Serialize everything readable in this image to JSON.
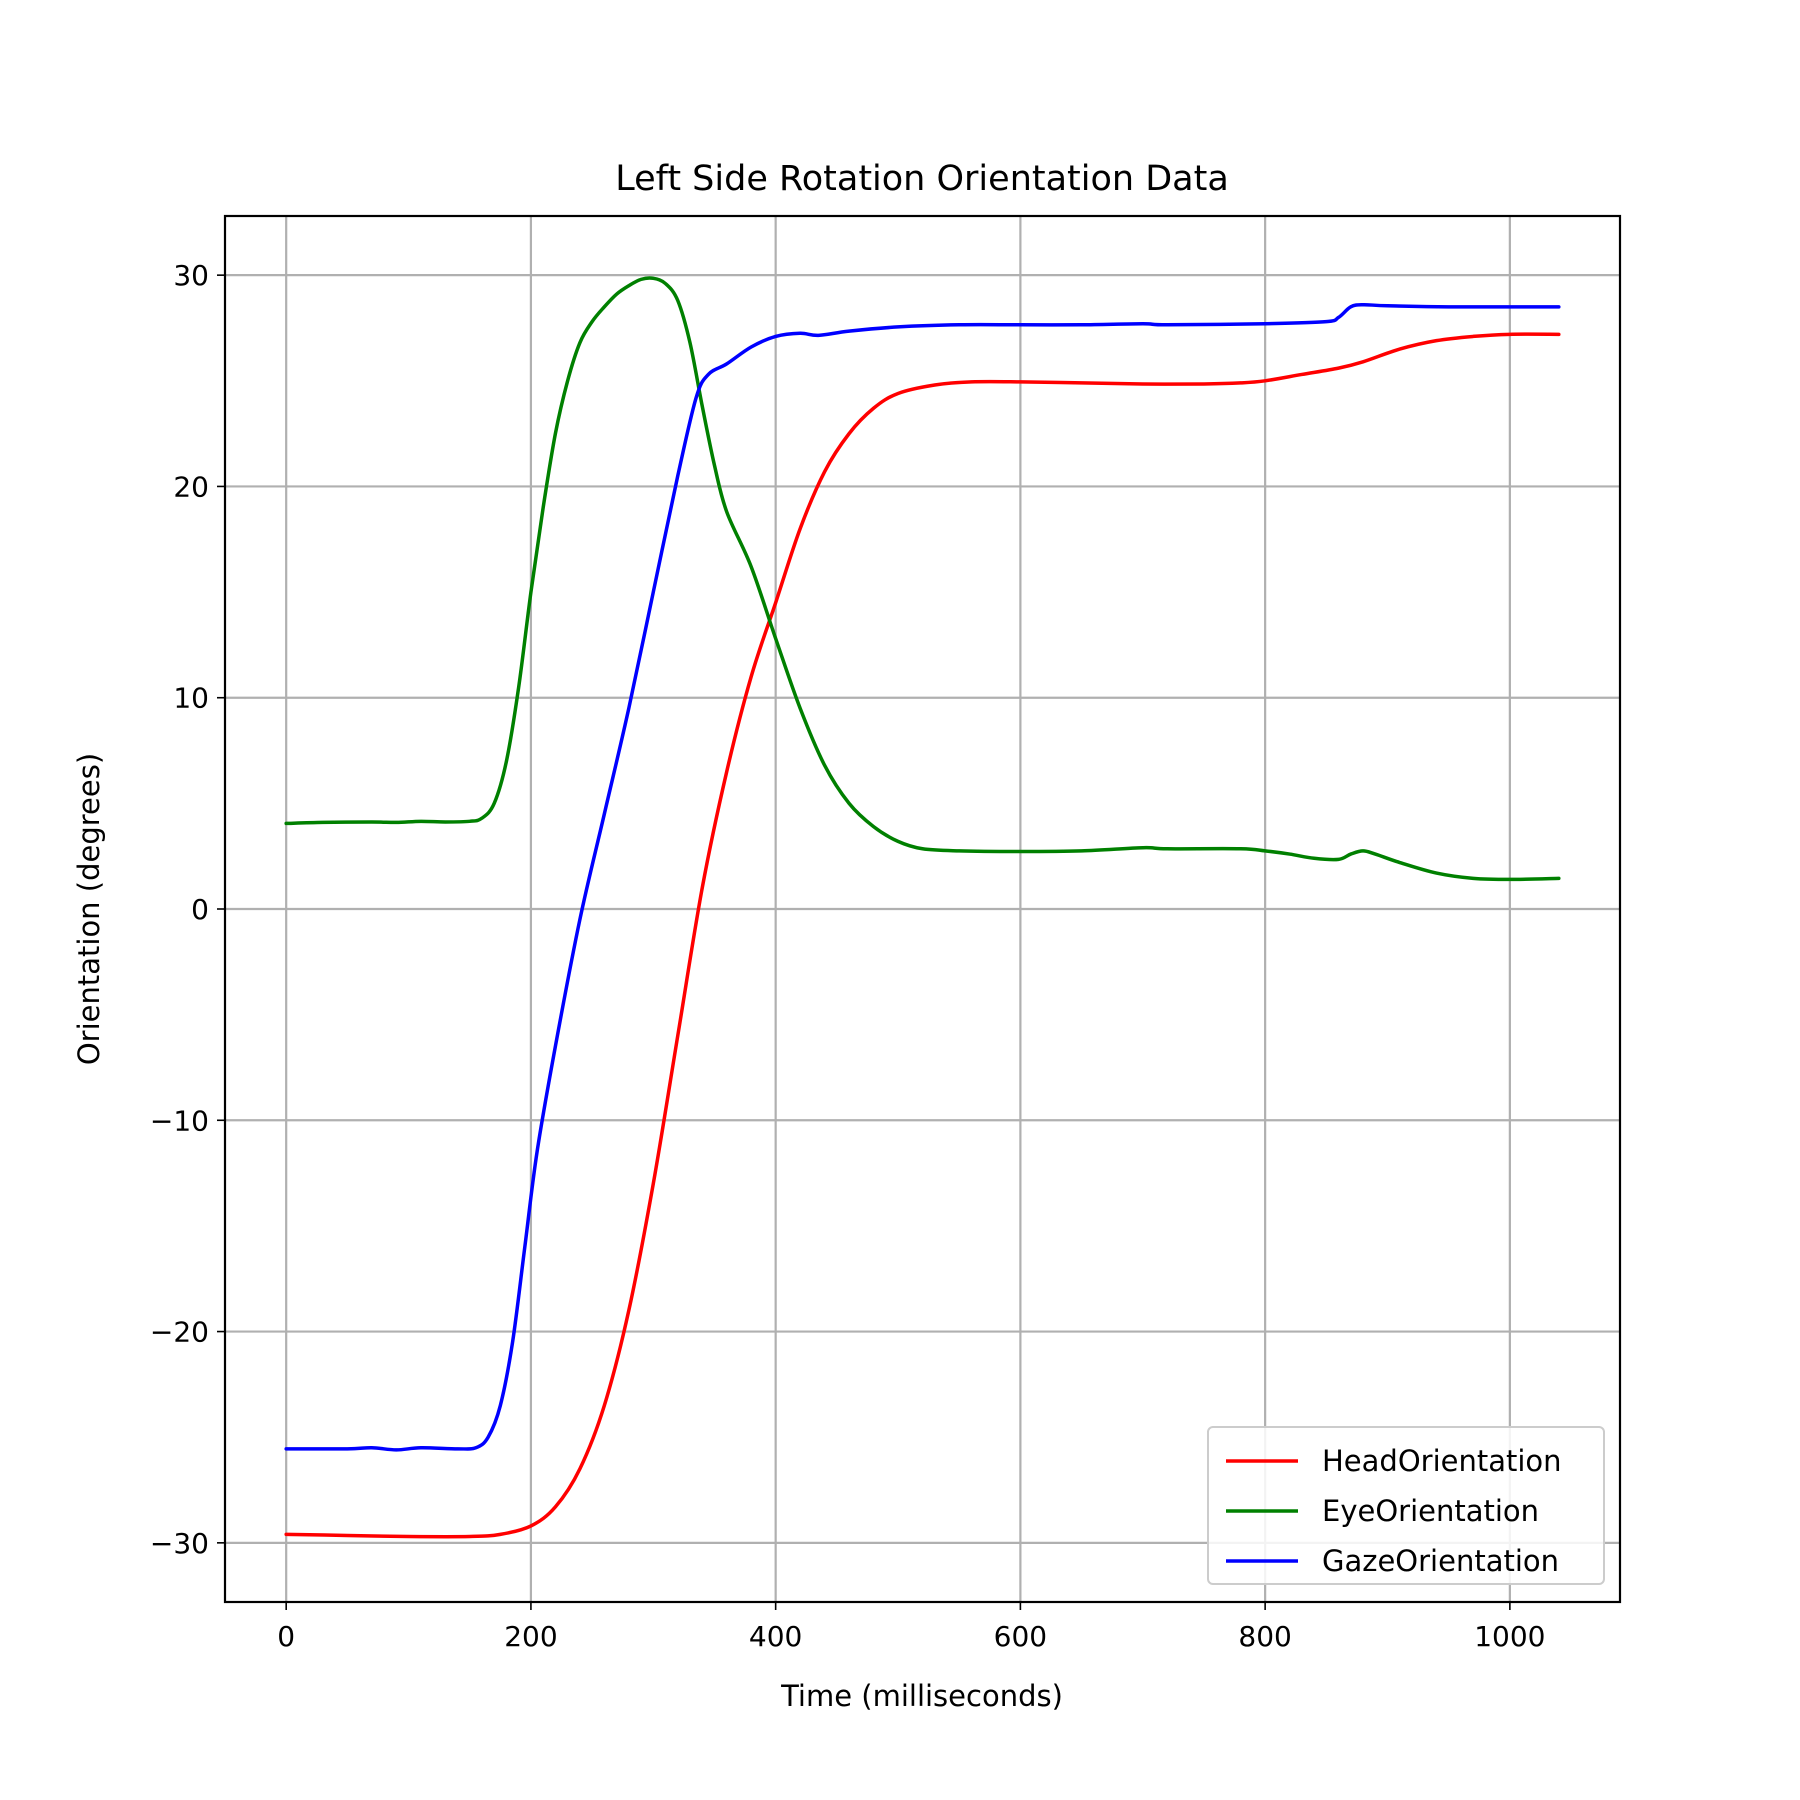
{
  "chart_data": {
    "type": "line",
    "title": "Left Side Rotation Orientation Data",
    "xlabel": "Time (milliseconds)",
    "ylabel": "Orientation (degrees)",
    "xlim": [
      -50,
      1090
    ],
    "ylim": [
      -32.8,
      32.8
    ],
    "xticks": [
      0,
      200,
      400,
      600,
      800,
      1000
    ],
    "yticks": [
      -30,
      -20,
      -10,
      0,
      10,
      20,
      30
    ],
    "xtick_labels": [
      "0",
      "200",
      "400",
      "600",
      "800",
      "1000"
    ],
    "ytick_labels": [
      "−30",
      "−20",
      "−10",
      "0",
      "10",
      "20",
      "30"
    ],
    "grid": true,
    "legend_position": "lower-right",
    "series": [
      {
        "name": "HeadOrientation",
        "color": "#ff0000",
        "points": [
          [
            0,
            -29.6
          ],
          [
            50,
            -29.65
          ],
          [
            100,
            -29.7
          ],
          [
            150,
            -29.7
          ],
          [
            175,
            -29.6
          ],
          [
            200,
            -29.2
          ],
          [
            220,
            -28.3
          ],
          [
            240,
            -26.5
          ],
          [
            260,
            -23.5
          ],
          [
            280,
            -19.0
          ],
          [
            300,
            -13.0
          ],
          [
            320,
            -6.0
          ],
          [
            340,
            1.0
          ],
          [
            360,
            6.5
          ],
          [
            380,
            11.0
          ],
          [
            400,
            14.5
          ],
          [
            420,
            18.0
          ],
          [
            440,
            20.7
          ],
          [
            460,
            22.5
          ],
          [
            480,
            23.7
          ],
          [
            500,
            24.4
          ],
          [
            530,
            24.8
          ],
          [
            560,
            24.95
          ],
          [
            600,
            24.95
          ],
          [
            650,
            24.9
          ],
          [
            700,
            24.85
          ],
          [
            750,
            24.85
          ],
          [
            780,
            24.9
          ],
          [
            800,
            25.0
          ],
          [
            830,
            25.3
          ],
          [
            860,
            25.6
          ],
          [
            880,
            25.9
          ],
          [
            910,
            26.5
          ],
          [
            940,
            26.9
          ],
          [
            970,
            27.1
          ],
          [
            1000,
            27.2
          ],
          [
            1040,
            27.2
          ]
        ]
      },
      {
        "name": "EyeOrientation",
        "color": "#008000",
        "points": [
          [
            0,
            4.05
          ],
          [
            30,
            4.1
          ],
          [
            70,
            4.12
          ],
          [
            90,
            4.1
          ],
          [
            110,
            4.15
          ],
          [
            130,
            4.12
          ],
          [
            150,
            4.15
          ],
          [
            160,
            4.3
          ],
          [
            170,
            5.0
          ],
          [
            180,
            7.0
          ],
          [
            190,
            10.5
          ],
          [
            200,
            15.0
          ],
          [
            210,
            19.0
          ],
          [
            220,
            22.5
          ],
          [
            230,
            25.0
          ],
          [
            240,
            26.8
          ],
          [
            250,
            27.8
          ],
          [
            260,
            28.5
          ],
          [
            270,
            29.1
          ],
          [
            280,
            29.5
          ],
          [
            290,
            29.8
          ],
          [
            300,
            29.85
          ],
          [
            310,
            29.6
          ],
          [
            320,
            28.8
          ],
          [
            330,
            26.8
          ],
          [
            340,
            23.8
          ],
          [
            350,
            21.0
          ],
          [
            360,
            18.8
          ],
          [
            380,
            16.2
          ],
          [
            400,
            12.8
          ],
          [
            420,
            9.5
          ],
          [
            440,
            6.8
          ],
          [
            460,
            5.0
          ],
          [
            480,
            3.9
          ],
          [
            500,
            3.2
          ],
          [
            520,
            2.85
          ],
          [
            550,
            2.75
          ],
          [
            600,
            2.72
          ],
          [
            650,
            2.75
          ],
          [
            700,
            2.9
          ],
          [
            720,
            2.85
          ],
          [
            780,
            2.85
          ],
          [
            800,
            2.75
          ],
          [
            820,
            2.6
          ],
          [
            840,
            2.4
          ],
          [
            860,
            2.35
          ],
          [
            870,
            2.6
          ],
          [
            880,
            2.75
          ],
          [
            890,
            2.6
          ],
          [
            910,
            2.2
          ],
          [
            940,
            1.7
          ],
          [
            970,
            1.45
          ],
          [
            1000,
            1.4
          ],
          [
            1040,
            1.45
          ]
        ]
      },
      {
        "name": "GazeOrientation",
        "color": "#0000ff",
        "points": [
          [
            0,
            -25.55
          ],
          [
            50,
            -25.55
          ],
          [
            70,
            -25.5
          ],
          [
            90,
            -25.6
          ],
          [
            110,
            -25.5
          ],
          [
            140,
            -25.55
          ],
          [
            155,
            -25.5
          ],
          [
            165,
            -25.0
          ],
          [
            175,
            -23.5
          ],
          [
            185,
            -20.5
          ],
          [
            195,
            -16.0
          ],
          [
            205,
            -11.5
          ],
          [
            220,
            -6.5
          ],
          [
            240,
            -0.5
          ],
          [
            260,
            4.5
          ],
          [
            280,
            9.5
          ],
          [
            300,
            15.0
          ],
          [
            320,
            20.5
          ],
          [
            335,
            24.2
          ],
          [
            345,
            25.3
          ],
          [
            360,
            25.8
          ],
          [
            380,
            26.6
          ],
          [
            400,
            27.1
          ],
          [
            420,
            27.25
          ],
          [
            435,
            27.15
          ],
          [
            460,
            27.35
          ],
          [
            500,
            27.55
          ],
          [
            550,
            27.65
          ],
          [
            600,
            27.65
          ],
          [
            650,
            27.65
          ],
          [
            700,
            27.7
          ],
          [
            720,
            27.65
          ],
          [
            800,
            27.7
          ],
          [
            850,
            27.8
          ],
          [
            860,
            28.0
          ],
          [
            870,
            28.5
          ],
          [
            880,
            28.6
          ],
          [
            900,
            28.55
          ],
          [
            950,
            28.5
          ],
          [
            1000,
            28.5
          ],
          [
            1040,
            28.5
          ]
        ]
      }
    ]
  }
}
